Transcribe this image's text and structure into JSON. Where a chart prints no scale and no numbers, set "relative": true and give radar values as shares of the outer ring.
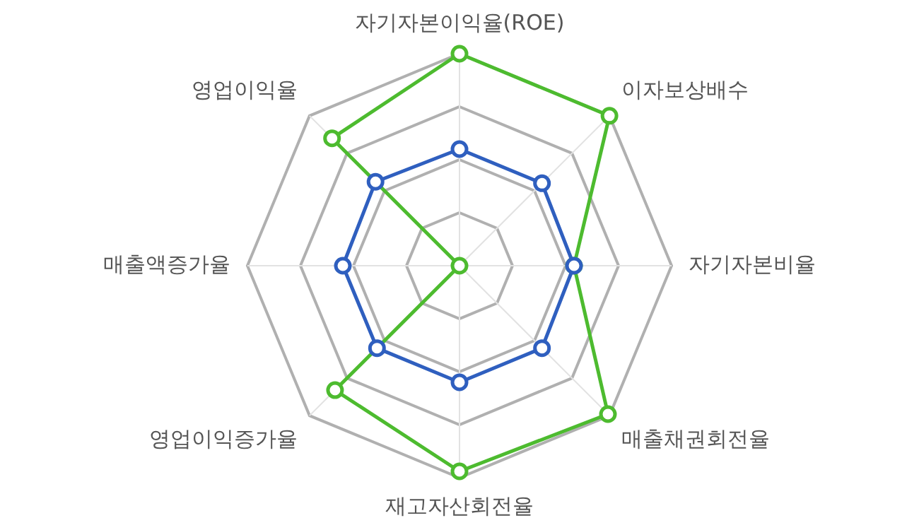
{
  "chart_data": {
    "type": "radar",
    "relative": true,
    "grid": true,
    "legend": false,
    "marker": "circle",
    "line_style": "solid",
    "categories": [
      "자기자본이익율(ROE)",
      "이자보상배수",
      "자기자본비율",
      "매출채권회전율",
      "재고자산회전율",
      "영업이익증가율",
      "매출액증가율",
      "영업이익율"
    ],
    "series": [
      {
        "color": "#2f5fbf",
        "values": [
          0.55,
          0.55,
          0.54,
          0.55,
          0.55,
          0.55,
          0.55,
          0.56
        ]
      },
      {
        "color": "#4dbb2f",
        "values": [
          1,
          1,
          0.54,
          0.99,
          0.97,
          0.83,
          0,
          0.85
        ]
      }
    ]
  }
}
